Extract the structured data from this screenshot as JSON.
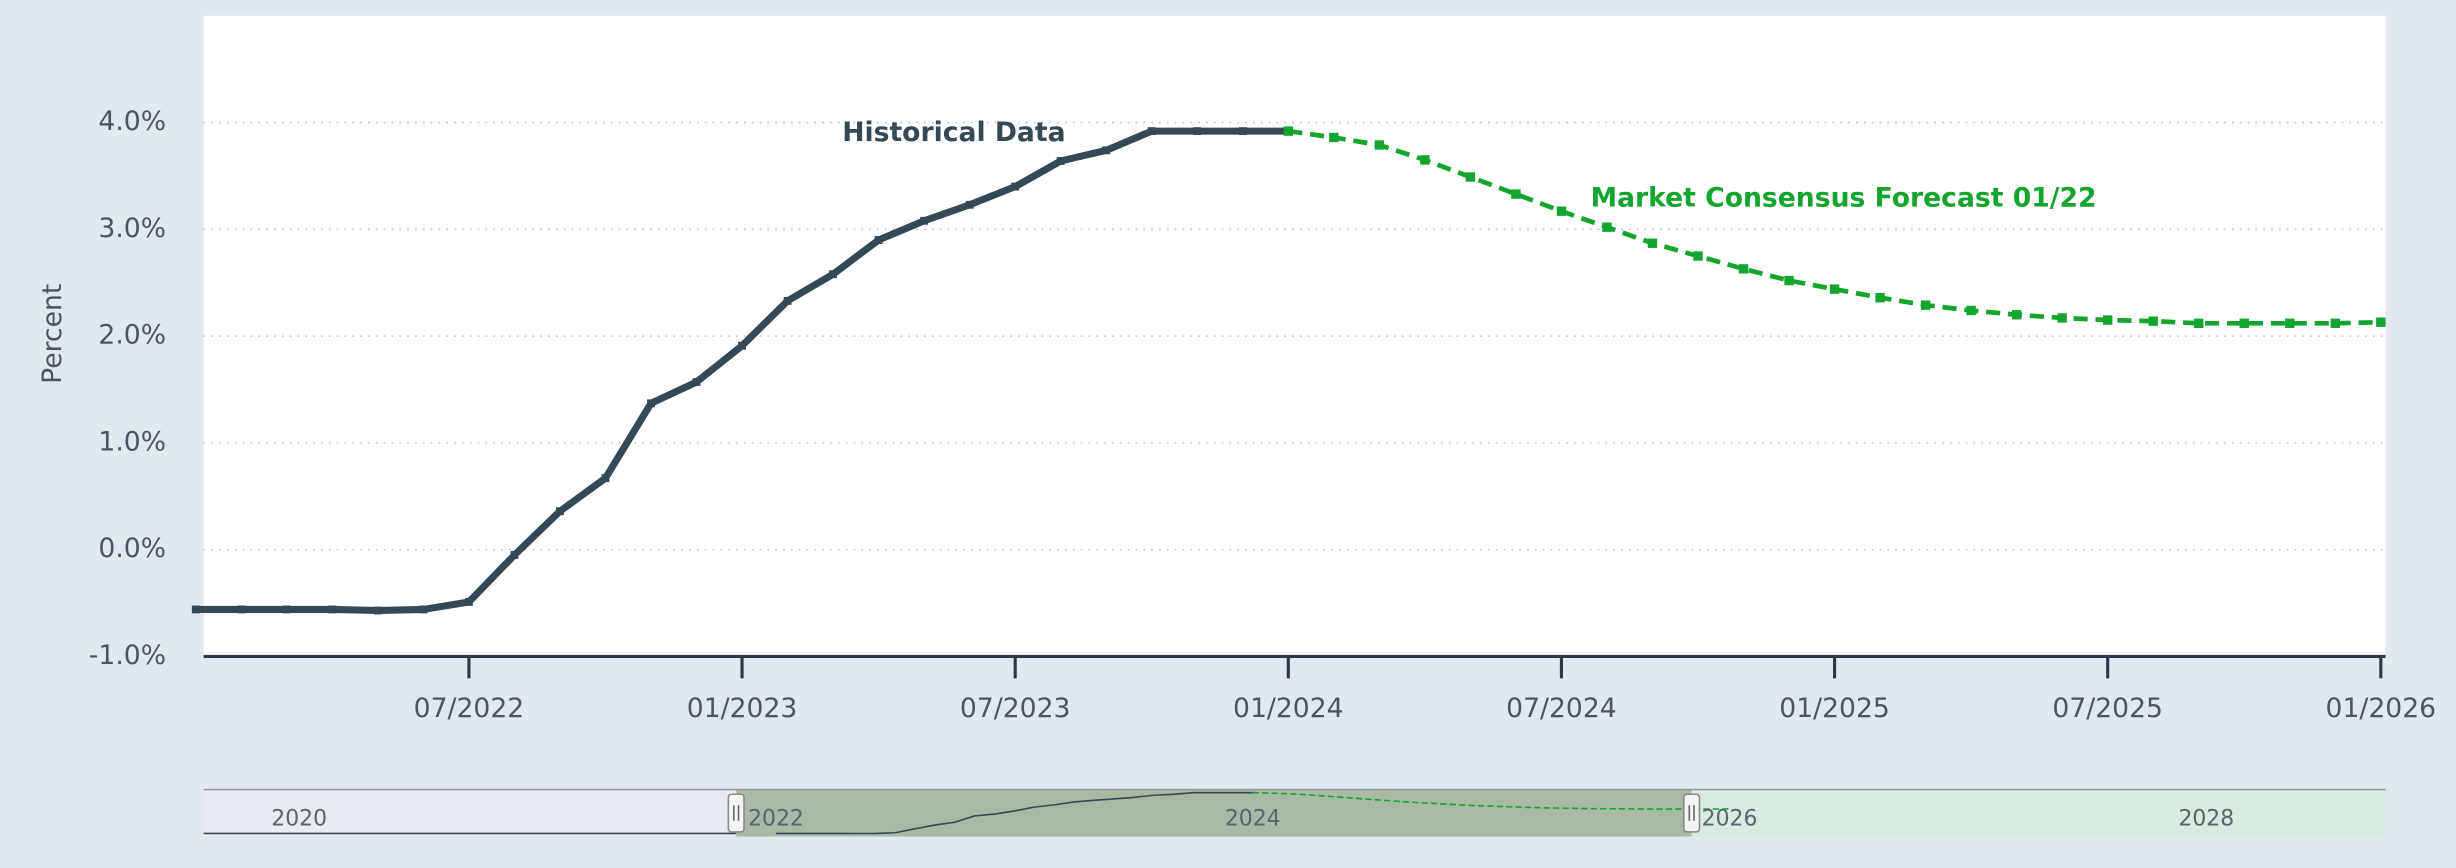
{
  "chart_data": {
    "type": "line",
    "y_label": "Percent",
    "xlim": [
      "01/2022",
      "01/2026"
    ],
    "xticks": [
      "07/2022",
      "01/2023",
      "07/2023",
      "01/2024",
      "07/2024",
      "01/2025",
      "07/2025",
      "01/2026"
    ],
    "ylim": [
      -1,
      5
    ],
    "yticks": [
      {
        "value": -1,
        "label": "-1.0%"
      },
      {
        "value": 0,
        "label": "0.0%"
      },
      {
        "value": 1,
        "label": "1.0%"
      },
      {
        "value": 2,
        "label": "2.0%"
      },
      {
        "value": 3,
        "label": "3.0%"
      },
      {
        "value": 4,
        "label": "4.0%"
      }
    ],
    "grid": true,
    "series": [
      {
        "name": "Historical Data",
        "color": "#344955",
        "style": "solid",
        "x": [
          "01/2022",
          "02/2022",
          "03/2022",
          "04/2022",
          "05/2022",
          "06/2022",
          "07/2022",
          "08/2022",
          "09/2022",
          "10/2022",
          "11/2022",
          "12/2022",
          "01/2023",
          "02/2023",
          "03/2023",
          "04/2023",
          "05/2023",
          "06/2023",
          "07/2023",
          "08/2023",
          "09/2023",
          "10/2023",
          "11/2023",
          "12/2023",
          "01/2024"
        ],
        "values": [
          -0.56,
          -0.56,
          -0.56,
          -0.56,
          -0.57,
          -0.56,
          -0.49,
          -0.05,
          0.36,
          0.67,
          1.37,
          1.57,
          1.91,
          2.33,
          2.58,
          2.9,
          3.08,
          3.23,
          3.4,
          3.64,
          3.74,
          3.92,
          3.92,
          3.92,
          3.92
        ]
      },
      {
        "name": "Market Consensus Forecast 01/22",
        "color": "#14a52e",
        "style": "dashed",
        "x": [
          "01/2024",
          "02/2024",
          "03/2024",
          "04/2024",
          "05/2024",
          "06/2024",
          "07/2024",
          "08/2024",
          "09/2024",
          "10/2024",
          "11/2024",
          "12/2024",
          "01/2025",
          "02/2025",
          "03/2025",
          "04/2025",
          "05/2025",
          "06/2025",
          "07/2025",
          "08/2025",
          "09/2025",
          "10/2025",
          "11/2025",
          "12/2025",
          "01/2026"
        ],
        "values": [
          3.92,
          3.86,
          3.79,
          3.65,
          3.49,
          3.33,
          3.17,
          3.02,
          2.87,
          2.75,
          2.63,
          2.52,
          2.44,
          2.36,
          2.29,
          2.24,
          2.2,
          2.17,
          2.15,
          2.14,
          2.12,
          2.12,
          2.12,
          2.12,
          2.13
        ]
      }
    ],
    "navigator_labels": [
      "2020",
      "2022",
      "2024",
      "2026",
      "2028"
    ]
  }
}
